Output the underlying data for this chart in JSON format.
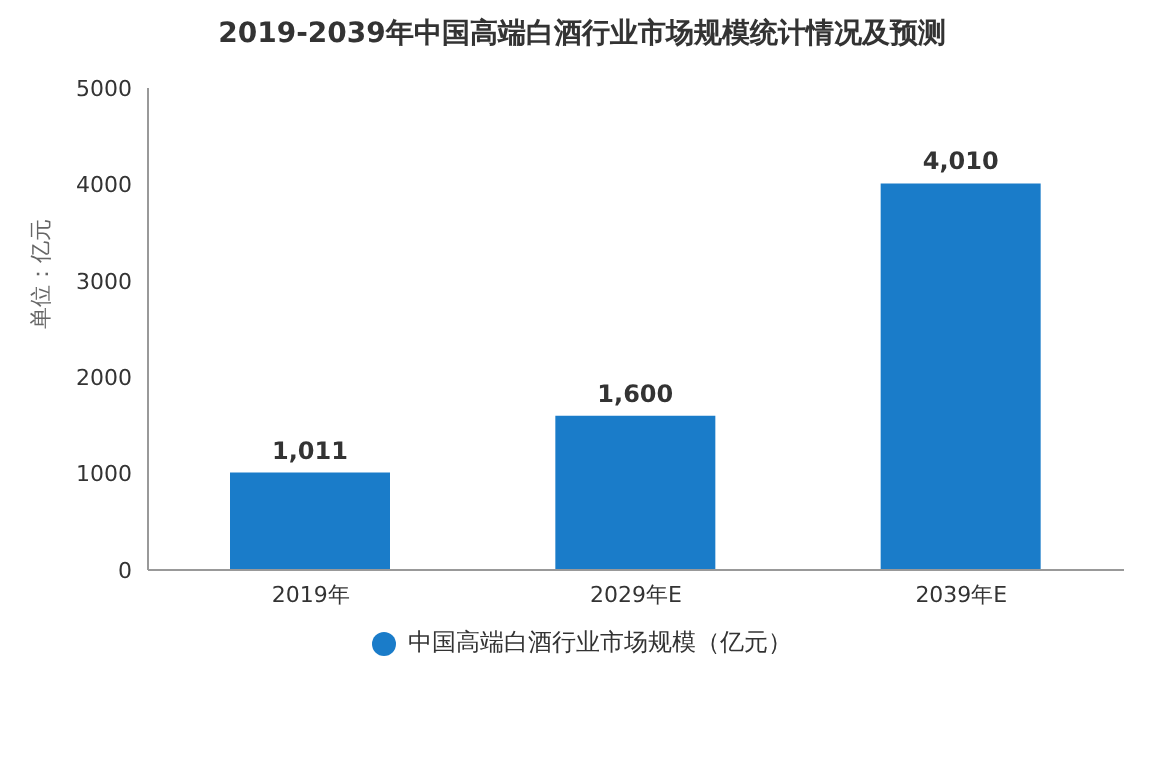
{
  "chart_data": {
    "type": "bar",
    "title": "2019-2039年中国高端白酒行业市场规模统计情况及预测",
    "ylabel": "单位：亿元",
    "categories": [
      "2019年",
      "2029年E",
      "2039年E"
    ],
    "series": [
      {
        "name": "中国高端白酒行业市场规模（亿元）",
        "color": "#1a7cc9",
        "values": [
          1011,
          1600,
          4010
        ],
        "value_labels": [
          "1,011",
          "1,600",
          "4,010"
        ]
      }
    ],
    "ylim": [
      0,
      5000
    ],
    "yticks": [
      0,
      1000,
      2000,
      3000,
      4000,
      5000
    ],
    "legend": "bottom"
  }
}
